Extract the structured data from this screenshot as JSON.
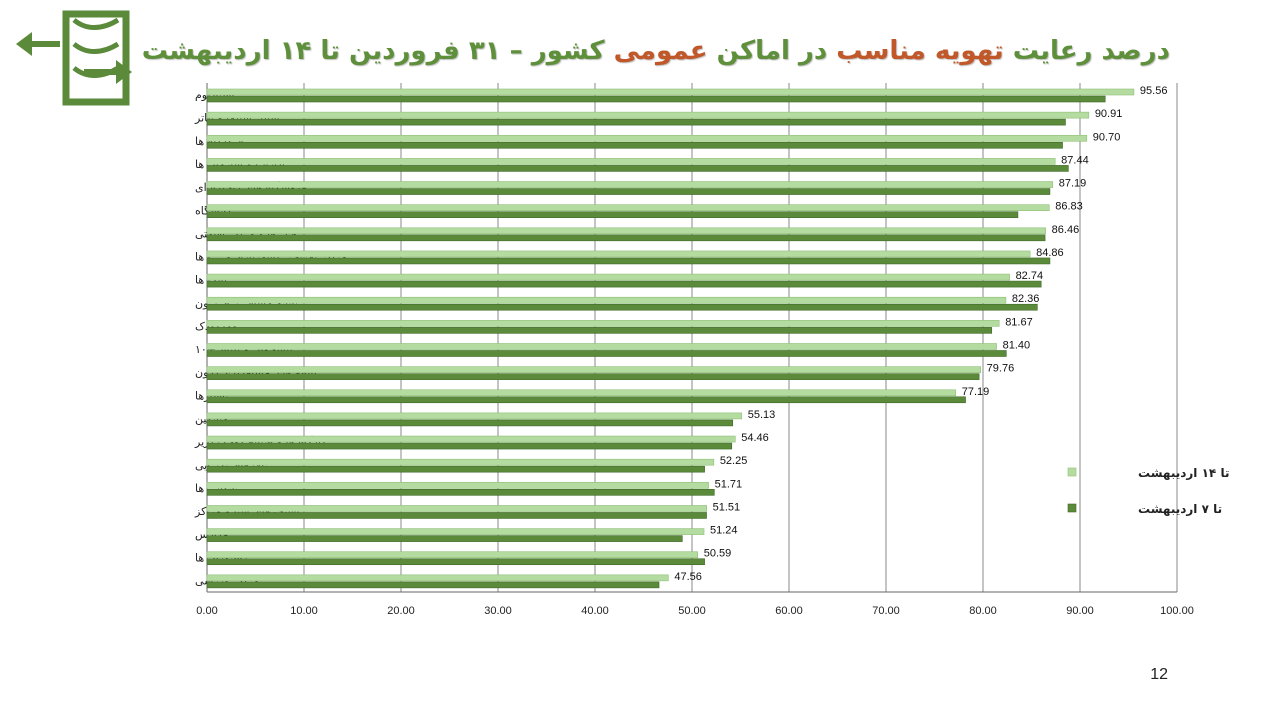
{
  "slide": {
    "title_parts": [
      {
        "text": "درصد رعایت ",
        "highlight": false
      },
      {
        "text": "تهویه مناسب",
        "highlight": true
      },
      {
        "text": " در اماکن ",
        "highlight": false
      },
      {
        "text": "عمومی",
        "highlight": true
      },
      {
        "text": " کشور – ۳۱ فروردین تا ۱۴ اردیبهشت",
        "highlight": false
      }
    ],
    "page_number": "12",
    "logo_icon": "exit-window-arrows-icon"
  },
  "colors": {
    "title_green": "#5e8f3a",
    "title_orange": "#c0582a",
    "series_light": "#b5dca0",
    "series_dark": "#5a8a3a",
    "grid": "#888888"
  },
  "chart_data": {
    "type": "bar",
    "orientation": "horizontal",
    "categories": [
      "استادیوم",
      "سالن سینما و تئاتر",
      "فرودگاه ها",
      "ادارات و سازمان ها",
      "فروشگاه های زنجیره ای",
      "دانشگاه",
      "هتل ها و مراکز اقامتی",
      "مراکز تفریحی (شهربازی و ...) ها",
      "بانک ها",
      "پایانه مسافر بری برون",
      "مهدکودک",
      "پیشخوان و پلیس+۱۰",
      "پایانه های مسافربری درون",
      "پاسا‌ژها",
      "میانگین",
      "کارگاه ها و صنایع کوچک (زیر",
      "تالارهای پذیرایی",
      "نانوایی ها",
      "استخرهای شنا و مراکز",
      "مدارس",
      "رستوران ها",
      "مراکز ورزشی"
    ],
    "series": [
      {
        "name": "تا ۱۴ اردیبهشت",
        "color": "#b5dca0",
        "values": [
          95.56,
          90.91,
          90.7,
          87.44,
          87.19,
          86.83,
          86.46,
          84.86,
          82.74,
          82.36,
          81.67,
          81.4,
          79.76,
          77.19,
          55.13,
          54.46,
          52.25,
          51.71,
          51.51,
          51.24,
          50.59,
          47.56
        ]
      },
      {
        "name": "تا ۷ اردیبهشت",
        "color": "#5a8a3a",
        "values": [
          92.6,
          88.5,
          88.2,
          88.8,
          86.9,
          83.6,
          86.4,
          86.9,
          86.0,
          85.6,
          80.9,
          82.4,
          79.6,
          78.2,
          54.2,
          54.1,
          51.3,
          52.3,
          51.5,
          49.0,
          51.3,
          46.6
        ]
      }
    ],
    "data_labels": [
      "95.56",
      "90.91",
      "90.70",
      "87.44",
      "87.19",
      "86.83",
      "86.46",
      "84.86",
      "82.74",
      "82.36",
      "81.67",
      "81.40",
      "79.76",
      "77.19",
      "55.13",
      "54.46",
      "52.25",
      "51.71",
      "51.51",
      "51.24",
      "50.59",
      "47.56"
    ],
    "x_ticks": [
      "0.00",
      "10.00",
      "20.00",
      "30.00",
      "40.00",
      "50.00",
      "60.00",
      "70.00",
      "80.00",
      "90.00",
      "100.00"
    ],
    "xlim": [
      0,
      100
    ],
    "grid": true,
    "legend_position": "right"
  }
}
